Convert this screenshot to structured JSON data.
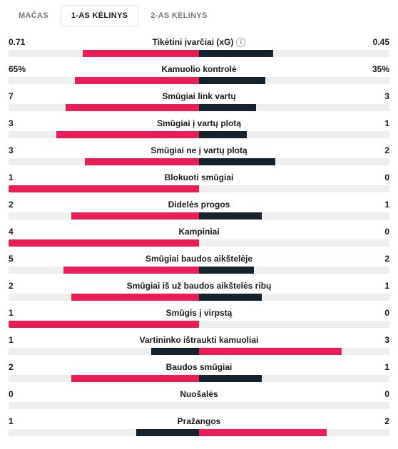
{
  "colors": {
    "home": "#e91e56",
    "away": "#16232e",
    "track": "#eeeeee"
  },
  "tabs": [
    {
      "id": "match",
      "label": "MAČAS",
      "active": false
    },
    {
      "id": "half1",
      "label": "1-AS KĖLINYS",
      "active": true
    },
    {
      "id": "half2",
      "label": "2-AS KĖLINYS",
      "active": false
    }
  ],
  "stats": [
    {
      "label": "Tikėtini įvarčiai (xG)",
      "info": true,
      "leftText": "0.71",
      "rightText": "0.45",
      "homePct": 61,
      "awayPct": 39,
      "winner": "home"
    },
    {
      "label": "Kamuolio kontrolė",
      "leftText": "65%",
      "rightText": "35%",
      "homePct": 65,
      "awayPct": 35,
      "winner": "home"
    },
    {
      "label": "Smūgiai link vartų",
      "leftText": "7",
      "rightText": "3",
      "homePct": 70,
      "awayPct": 30,
      "winner": "home"
    },
    {
      "label": "Smūgiai į vartų plotą",
      "leftText": "3",
      "rightText": "1",
      "homePct": 75,
      "awayPct": 25,
      "winner": "home"
    },
    {
      "label": "Smūgiai ne į vartų plotą",
      "leftText": "3",
      "rightText": "2",
      "homePct": 60,
      "awayPct": 40,
      "winner": "home"
    },
    {
      "label": "Blokuoti smūgiai",
      "leftText": "1",
      "rightText": "0",
      "homePct": 100,
      "awayPct": 0,
      "winner": "home"
    },
    {
      "label": "Didelės progos",
      "leftText": "2",
      "rightText": "1",
      "homePct": 67,
      "awayPct": 33,
      "winner": "home"
    },
    {
      "label": "Kampiniai",
      "leftText": "4",
      "rightText": "0",
      "homePct": 100,
      "awayPct": 0,
      "winner": "home"
    },
    {
      "label": "Smūgiai baudos aikštelėje",
      "leftText": "5",
      "rightText": "2",
      "homePct": 71,
      "awayPct": 29,
      "winner": "home"
    },
    {
      "label": "Smūgiai iš už baudos aikštelės ribų",
      "leftText": "2",
      "rightText": "1",
      "homePct": 67,
      "awayPct": 33,
      "winner": "home"
    },
    {
      "label": "Smūgis į virpstą",
      "leftText": "1",
      "rightText": "0",
      "homePct": 100,
      "awayPct": 0,
      "winner": "home"
    },
    {
      "label": "Vartininko ištraukti kamuoliai",
      "leftText": "1",
      "rightText": "3",
      "homePct": 25,
      "awayPct": 75,
      "winner": "away"
    },
    {
      "label": "Baudos smūgiai",
      "leftText": "2",
      "rightText": "1",
      "homePct": 67,
      "awayPct": 33,
      "winner": "home"
    },
    {
      "label": "Nuošalės",
      "leftText": "0",
      "rightText": "0",
      "homePct": 0,
      "awayPct": 0,
      "winner": "none"
    },
    {
      "label": "Pražangos",
      "leftText": "1",
      "rightText": "2",
      "homePct": 33,
      "awayPct": 67,
      "winner": "away"
    }
  ]
}
